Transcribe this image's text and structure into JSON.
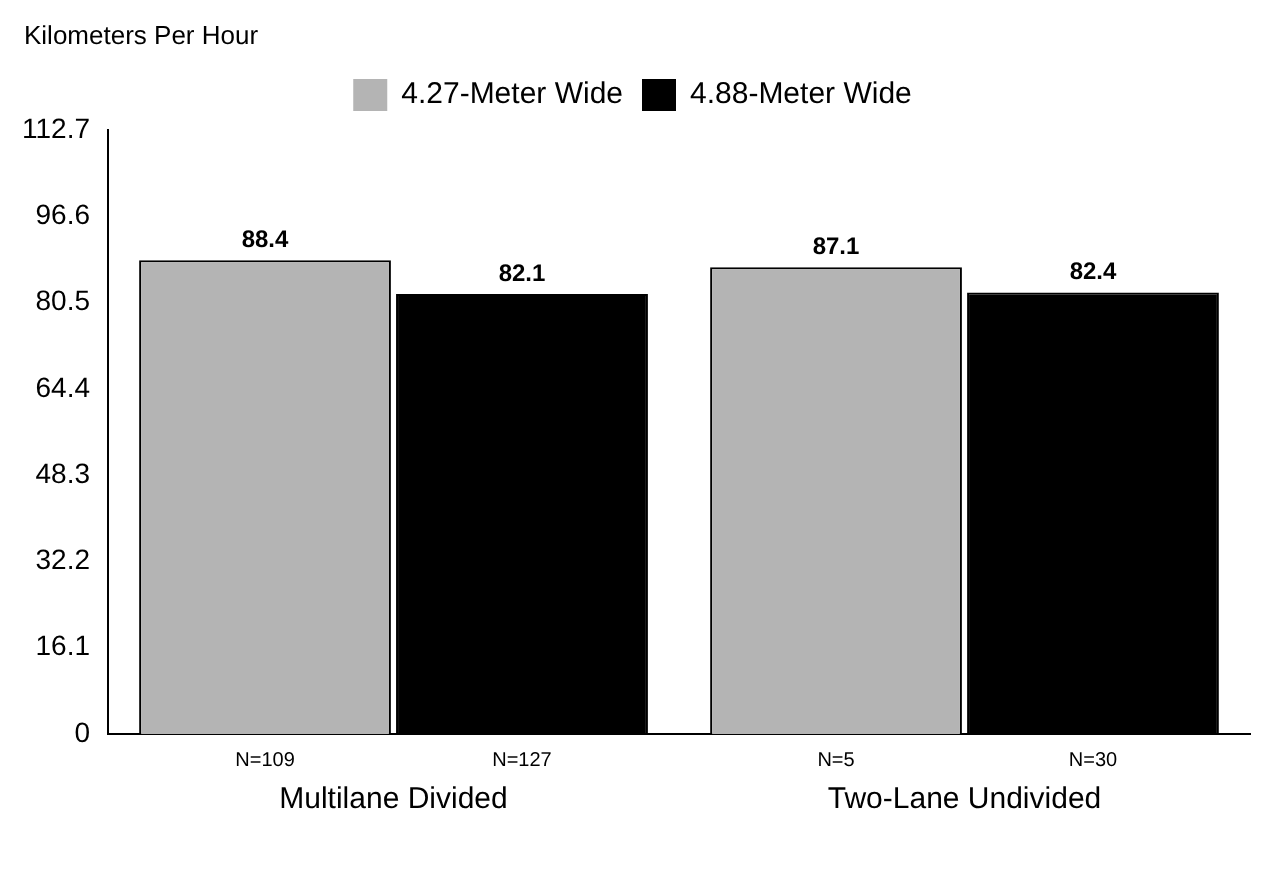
{
  "chart_data": {
    "type": "bar",
    "ylabel": "Kilometers Per Hour",
    "categories": [
      "Multilane Divided",
      "Two-Lane Undivided"
    ],
    "series": [
      {
        "name": "4.27-Meter Wide",
        "color": "#b4b4b4",
        "values": [
          88.4,
          87.1
        ]
      },
      {
        "name": "4.88-Meter Wide",
        "color": "#000000",
        "values": [
          82.1,
          82.4
        ]
      }
    ],
    "ylim": [
      0,
      112.7
    ],
    "yticks": [
      0,
      16.1,
      32.2,
      48.3,
      64.4,
      80.5,
      96.6,
      112.7
    ],
    "grid": false,
    "legend": "top",
    "data_labels": true,
    "annotations": [
      "N=109",
      "N=127",
      "N=5",
      "N=30"
    ]
  }
}
